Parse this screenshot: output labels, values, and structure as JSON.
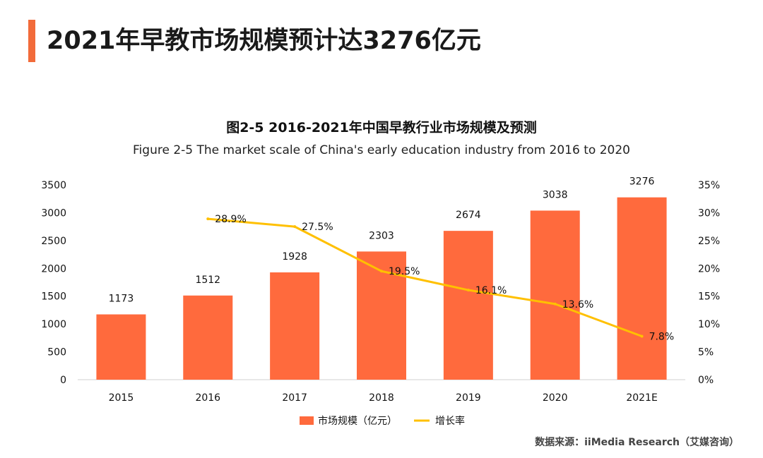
{
  "headline": "2021年早教市场规模预计达3276亿元",
  "source": "数据来源：iiMedia Research（艾媒咨询）",
  "colors": {
    "accent": "#F26B3A",
    "bar": "#FF6A3D",
    "line": "#FFC000"
  },
  "chart_data": {
    "type": "bar",
    "title": "图2-5 2016-2021年中国早教行业市场规模及预测",
    "subtitle": "Figure 2-5 The market scale of China's early education industry from 2016 to 2020",
    "categories": [
      "2015",
      "2016",
      "2017",
      "2018",
      "2019",
      "2020",
      "2021E"
    ],
    "series": [
      {
        "name": "市场规模（亿元）",
        "type": "bar",
        "axis": "left",
        "values": [
          1173,
          1512,
          1928,
          2303,
          2674,
          3038,
          3276
        ],
        "labels": [
          "1173",
          "1512",
          "1928",
          "2303",
          "2674",
          "3038",
          "3276"
        ]
      },
      {
        "name": "增长率",
        "type": "line",
        "axis": "right",
        "values": [
          null,
          28.9,
          27.5,
          19.5,
          16.1,
          13.6,
          7.8
        ],
        "labels": [
          "",
          "28.9%",
          "27.5%",
          "19.5%",
          "16.1%",
          "13.6%",
          "7.8%"
        ]
      }
    ],
    "y_left": {
      "ylim": [
        0,
        3500
      ],
      "ticks": [
        "0",
        "500",
        "1000",
        "1500",
        "2000",
        "2500",
        "3000",
        "3500"
      ]
    },
    "y_right": {
      "ylim": [
        0,
        35
      ],
      "ticks": [
        "0%",
        "5%",
        "10%",
        "15%",
        "20%",
        "25%",
        "30%",
        "35%"
      ]
    },
    "grid": false,
    "legend_position": "bottom-center"
  }
}
